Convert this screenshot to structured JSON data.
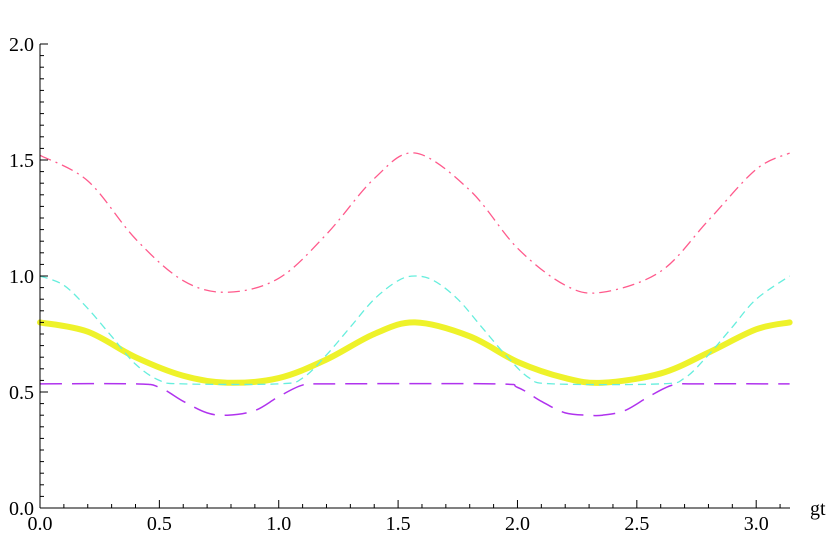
{
  "chart_data": {
    "type": "line",
    "title": "",
    "xlabel": "gt",
    "ylabel": "",
    "xlim": [
      0,
      3.1416
    ],
    "ylim": [
      0,
      2.0
    ],
    "x_ticks": [
      "0.0",
      "0.5",
      "1.0",
      "1.5",
      "2.0",
      "2.5",
      "3.0"
    ],
    "x_tick_values": [
      0,
      0.5,
      1.0,
      1.5,
      2.0,
      2.5,
      3.0
    ],
    "y_ticks": [
      "0.0",
      "0.5",
      "1.0",
      "1.5",
      "2.0"
    ],
    "y_tick_values": [
      0,
      0.5,
      1.0,
      1.5,
      2.0
    ],
    "grid": false,
    "legend": "none",
    "series": [
      {
        "color": "#ff5a8c",
        "style": "dash-dot",
        "x": [
          0,
          0.2,
          0.4,
          0.6,
          0.785,
          1.0,
          1.2,
          1.4,
          1.571,
          1.8,
          2.0,
          2.2,
          2.356,
          2.6,
          2.8,
          3.0,
          3.14
        ],
        "y": [
          1.52,
          1.41,
          1.16,
          0.98,
          0.93,
          0.99,
          1.18,
          1.42,
          1.53,
          1.37,
          1.12,
          0.96,
          0.93,
          1.02,
          1.24,
          1.46,
          1.53
        ]
      },
      {
        "color": "#66eedd",
        "style": "dashed",
        "x": [
          0,
          0.1,
          0.2,
          0.3,
          0.4,
          0.5,
          0.6,
          1.0,
          1.1,
          1.2,
          1.3,
          1.4,
          1.5,
          1.571,
          1.65,
          1.75,
          1.85,
          1.95,
          2.05,
          2.15,
          2.6,
          2.7,
          2.8,
          2.9,
          3.0,
          3.14
        ],
        "y": [
          1.0,
          0.96,
          0.86,
          0.74,
          0.62,
          0.55,
          0.535,
          0.535,
          0.56,
          0.66,
          0.78,
          0.9,
          0.98,
          1.0,
          0.98,
          0.9,
          0.78,
          0.66,
          0.56,
          0.535,
          0.535,
          0.56,
          0.66,
          0.78,
          0.9,
          1.0
        ]
      },
      {
        "color": "#eef22a",
        "style": "solid-thick",
        "x": [
          0,
          0.2,
          0.4,
          0.6,
          0.785,
          1.0,
          1.2,
          1.4,
          1.571,
          1.8,
          2.0,
          2.2,
          2.356,
          2.6,
          2.8,
          3.0,
          3.14
        ],
        "y": [
          0.8,
          0.76,
          0.65,
          0.57,
          0.54,
          0.56,
          0.64,
          0.75,
          0.8,
          0.74,
          0.63,
          0.56,
          0.54,
          0.58,
          0.67,
          0.77,
          0.8
        ]
      },
      {
        "color": "#b033ee",
        "style": "long-dash",
        "x": [
          0,
          0.4,
          0.5,
          0.6,
          0.7,
          0.785,
          0.9,
          1.0,
          1.1,
          1.2,
          1.9,
          2.0,
          2.1,
          2.2,
          2.3,
          2.356,
          2.45,
          2.55,
          2.65,
          2.75,
          3.14
        ],
        "y": [
          0.535,
          0.535,
          0.52,
          0.46,
          0.41,
          0.4,
          0.42,
          0.48,
          0.53,
          0.535,
          0.535,
          0.52,
          0.46,
          0.41,
          0.4,
          0.4,
          0.42,
          0.48,
          0.53,
          0.535,
          0.535
        ]
      }
    ]
  }
}
